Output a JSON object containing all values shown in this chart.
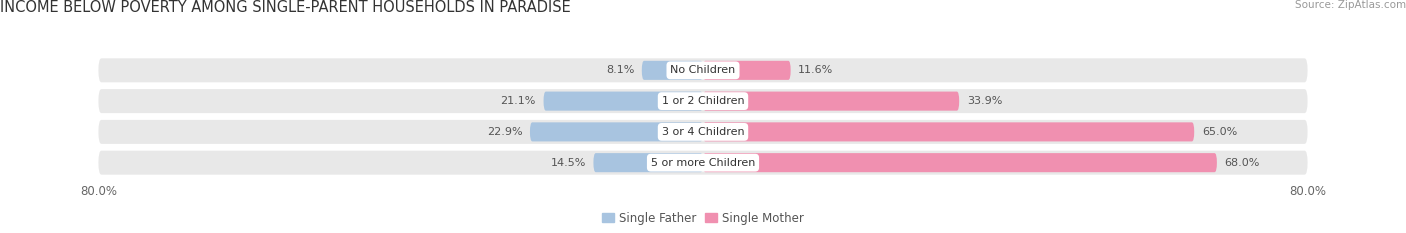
{
  "title": "INCOME BELOW POVERTY AMONG SINGLE-PARENT HOUSEHOLDS IN PARADISE",
  "source_text": "Source: ZipAtlas.com",
  "categories": [
    "No Children",
    "1 or 2 Children",
    "3 or 4 Children",
    "5 or more Children"
  ],
  "father_values": [
    8.1,
    21.1,
    22.9,
    14.5
  ],
  "mother_values": [
    11.6,
    33.9,
    65.0,
    68.0
  ],
  "father_color": "#a8c4e0",
  "mother_color": "#f090b0",
  "bar_bg_color": "#e8e8e8",
  "axis_min": -80.0,
  "axis_max": 80.0,
  "father_label": "Single Father",
  "mother_label": "Single Mother",
  "title_fontsize": 10.5,
  "tick_fontsize": 8.5,
  "label_fontsize": 8,
  "legend_fontsize": 8.5,
  "source_fontsize": 7.5,
  "bg_color": "#f5f5f5"
}
